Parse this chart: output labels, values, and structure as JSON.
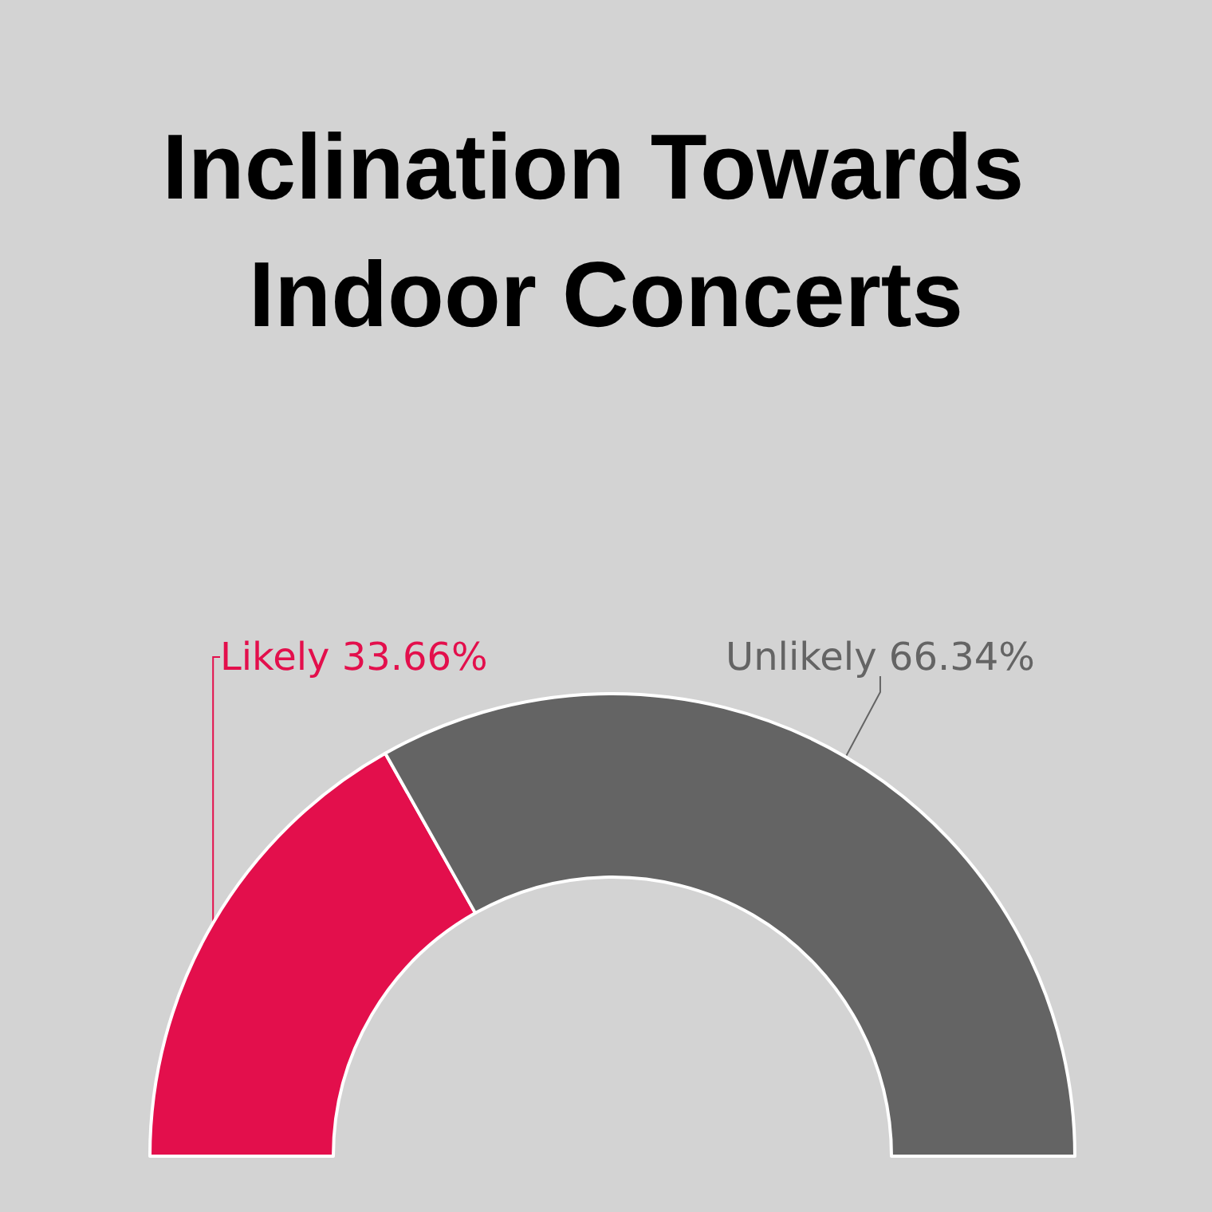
{
  "chart_data": {
    "type": "donut",
    "title": "Inclination Towards Indoor Concerts",
    "categories": [
      "Likely",
      "Unlikely"
    ],
    "values": [
      33.66,
      66.34
    ],
    "colors": [
      "#e30f4c",
      "#646464"
    ],
    "value_labels": [
      "33.66%",
      "66.34%"
    ]
  }
}
